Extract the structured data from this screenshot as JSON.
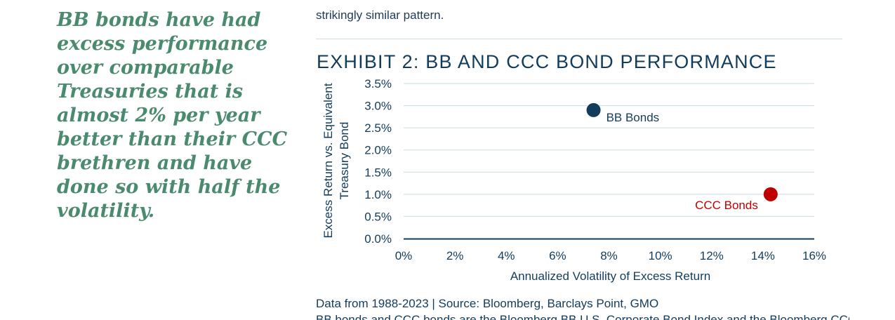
{
  "pullquote": "BB bonds have had excess performance over comparable Treasuries that is almost 2% per year better than their CCC brethren and have done so with half the volatility.",
  "body_text_end": "strikingly similar pattern.",
  "exhibit_title": "EXHIBIT 2: BB AND CCC BOND PERFORMANCE",
  "source_line": "Data from 1988-2023 | Source: Bloomberg, Barclays Point, GMO",
  "note_line": "BB bonds and CCC bonds are the Bloomberg BB U.S. Corporate Bond Index and the Bloomberg CCC U.S.",
  "colors": {
    "bb": "#123c5c",
    "ccc": "#c00000",
    "grid": "#c9dbe6",
    "axis": "#123c5c",
    "text": "#123c5c"
  },
  "chart_data": {
    "type": "scatter",
    "title": "EXHIBIT 2: BB AND CCC BOND PERFORMANCE",
    "xlabel": "Annualized Volatility of Excess Return",
    "ylabel": "Excess Return vs. Equivalent Treasury Bond",
    "xlim": [
      0,
      16
    ],
    "ylim": [
      0,
      3.5
    ],
    "xticks": [
      "0%",
      "2%",
      "4%",
      "6%",
      "8%",
      "10%",
      "12%",
      "14%",
      "16%"
    ],
    "yticks": [
      "0.0%",
      "0.5%",
      "1.0%",
      "1.5%",
      "2.0%",
      "2.5%",
      "3.0%",
      "3.5%"
    ],
    "grid": true,
    "points": [
      {
        "label": "BB Bonds",
        "x": 7.4,
        "y": 2.9,
        "color": "#123c5c"
      },
      {
        "label": "CCC Bonds",
        "x": 14.3,
        "y": 1.0,
        "color": "#c00000"
      }
    ]
  }
}
